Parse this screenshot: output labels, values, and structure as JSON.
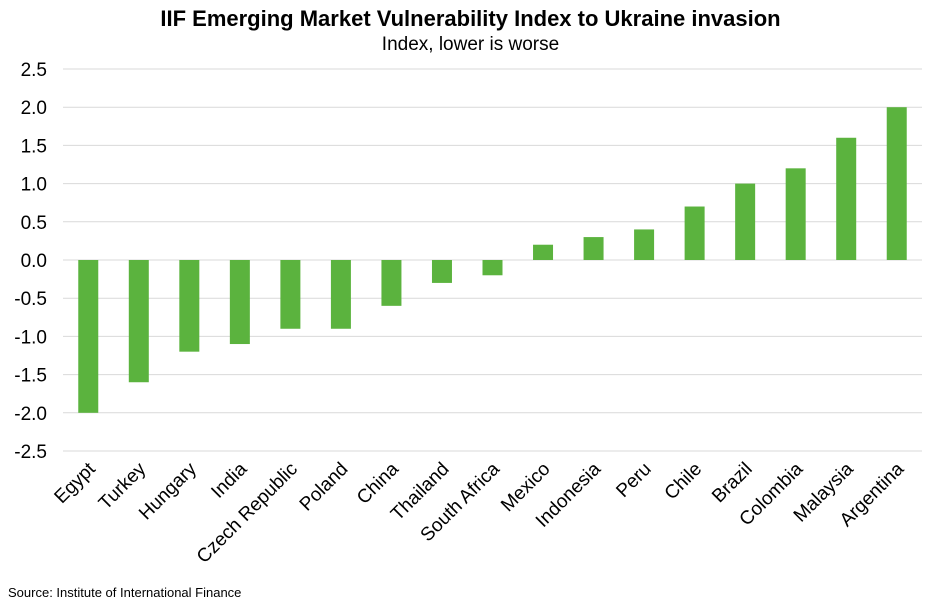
{
  "chart_data": {
    "type": "bar",
    "title": "IIF Emerging Market Vulnerability Index to Ukraine invasion",
    "subtitle": "Index, lower is worse",
    "xlabel": "",
    "ylabel": "",
    "ylim": [
      -2.5,
      2.5
    ],
    "yticks": [
      2.5,
      2.0,
      1.5,
      1.0,
      0.5,
      0.0,
      -0.5,
      -1.0,
      -1.5,
      -2.0,
      -2.5
    ],
    "ytick_labels": [
      "2.5",
      "2.0",
      "1.5",
      "1.0",
      "0.5",
      "0.0",
      "-0.5",
      "-1.0",
      "-1.5",
      "-2.0",
      "-2.5"
    ],
    "grid": true,
    "bar_color": "#5BB33E",
    "categories": [
      "Egypt",
      "Turkey",
      "Hungary",
      "India",
      "Czech Republic",
      "Poland",
      "China",
      "Thailand",
      "South Africa",
      "Mexico",
      "Indonesia",
      "Peru",
      "Chile",
      "Brazil",
      "Colombia",
      "Malaysia",
      "Argentina"
    ],
    "values": [
      -2.0,
      -1.6,
      -1.2,
      -1.1,
      -0.9,
      -0.9,
      -0.6,
      -0.3,
      -0.2,
      0.2,
      0.3,
      0.4,
      0.7,
      1.0,
      1.2,
      1.6,
      2.0
    ]
  },
  "source": "Source: Institute of International Finance"
}
